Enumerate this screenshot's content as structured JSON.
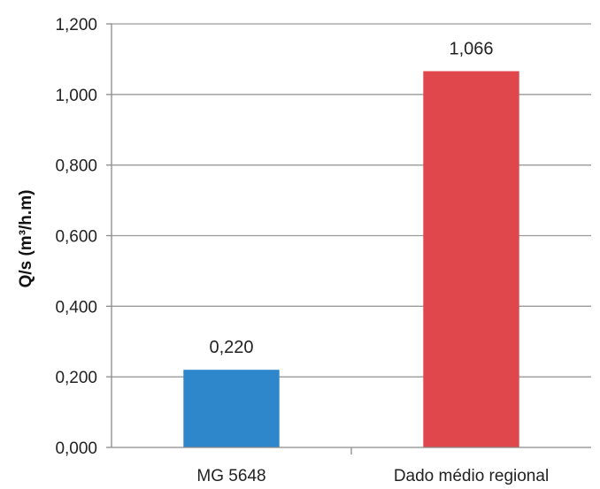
{
  "chart_data": {
    "type": "bar",
    "categories": [
      "MG 5648",
      "Dado médio regional"
    ],
    "values": [
      0.22,
      1.066
    ],
    "value_labels": [
      "0,220",
      "1,066"
    ],
    "bar_colors": [
      "#2E86CB",
      "#E0474C"
    ],
    "ylabel": "Q/s (m³/h.m)",
    "ylim": [
      0,
      1.2
    ],
    "yticks": [
      0,
      0.2,
      0.4,
      0.6,
      0.8,
      1.0,
      1.2
    ],
    "ytick_labels": [
      "0,000",
      "0,200",
      "0,400",
      "0,600",
      "0,800",
      "1,000",
      "1,200"
    ],
    "grid": true,
    "legend": "none"
  }
}
